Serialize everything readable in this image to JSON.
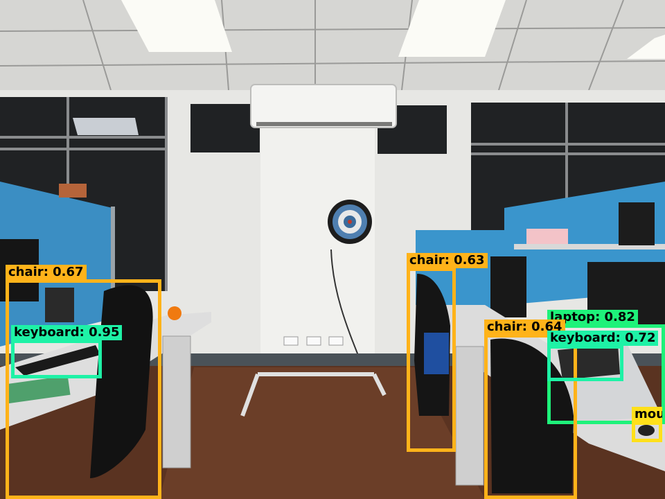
{
  "scene": {
    "colors": {
      "ceiling": "#d9d9d6",
      "wall": "#e9e9e6",
      "partition_blue": "#3c8fc4",
      "floor": "#5b3422",
      "desk": "#dcdcdc",
      "window_dark": "#1d1f21"
    }
  },
  "detections": [
    {
      "id": "det-chair-1",
      "label": "chair",
      "score": "0.67",
      "color": "#ffb31a"
    },
    {
      "id": "det-keyboard-1",
      "label": "keyboard",
      "score": "0.95",
      "color": "#1ef2a6"
    },
    {
      "id": "det-chair-2",
      "label": "chair",
      "score": "0.63",
      "color": "#ffb31a"
    },
    {
      "id": "det-chair-3",
      "label": "chair",
      "score": "0.64",
      "color": "#ffb31a"
    },
    {
      "id": "det-laptop-1",
      "label": "laptop",
      "score": "0.82",
      "color": "#1ef27a"
    },
    {
      "id": "det-keyboard-2",
      "label": "keyboard",
      "score": "0.72",
      "color": "#1ef2a6"
    },
    {
      "id": "det-mouse-1",
      "label": "mou",
      "score": "",
      "color": "#ffe01a"
    }
  ]
}
